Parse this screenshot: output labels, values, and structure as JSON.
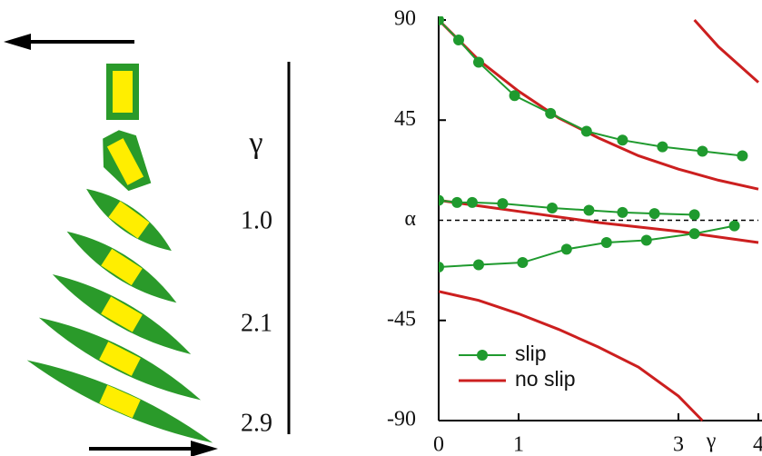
{
  "diagram": {
    "gamma_label": "γ",
    "strain_labels": [
      "1.0",
      "2.1",
      "2.9"
    ]
  },
  "chart_data": {
    "type": "line",
    "x_label": "γ",
    "y_label": "α",
    "xlim": [
      0,
      4
    ],
    "xticks": [
      0,
      1,
      3,
      4
    ],
    "ylim": [
      -90,
      90
    ],
    "yticks": [
      -90,
      -45,
      45,
      90
    ],
    "zero_line": true,
    "legend": "lower-left",
    "series": [
      {
        "name": "slip",
        "color": "#1f9a2e",
        "marker": true,
        "lines": [
          {
            "x": [
              0,
              0.25,
              0.5,
              0.95,
              1.4,
              1.85,
              2.3,
              2.8,
              3.3,
              3.8
            ],
            "values": [
              90,
              81,
              71,
              56,
              48,
              40,
              36,
              33,
              31,
              29
            ]
          },
          {
            "x": [
              0,
              0.23,
              0.42,
              0.8,
              1.42,
              1.88,
              2.3,
              2.7,
              3.2
            ],
            "values": [
              9,
              8,
              8,
              7.5,
              5.5,
              4.5,
              3.5,
              3,
              2.5
            ]
          },
          {
            "x": [
              0,
              0.5,
              1.05,
              1.6,
              2.1,
              2.6,
              3.2,
              3.7
            ],
            "values": [
              -21,
              -20,
              -19,
              -13,
              -10,
              -9,
              -6,
              -2.5
            ]
          }
        ]
      },
      {
        "name": "no slip",
        "color": "#cc1f1f",
        "marker": false,
        "lines": [
          {
            "x": [
              0,
              0.5,
              1,
              1.5,
              2,
              2.5,
              3,
              3.5,
              4
            ],
            "values": [
              90,
              72,
              58,
              46,
              37,
              29,
              23,
              18,
              14
            ]
          },
          {
            "x": [
              0,
              1,
              2,
              3,
              4
            ],
            "values": [
              9,
              4,
              -1,
              -5,
              -10
            ]
          },
          {
            "x": [
              0,
              0.5,
              1,
              1.5,
              2,
              2.5,
              3,
              3.3
            ],
            "values": [
              -32,
              -36,
              -42,
              -49,
              -57,
              -66,
              -79,
              -90
            ]
          },
          {
            "x": [
              3.2,
              3.5,
              4
            ],
            "values": [
              90,
              78,
              62
            ]
          }
        ]
      }
    ]
  }
}
